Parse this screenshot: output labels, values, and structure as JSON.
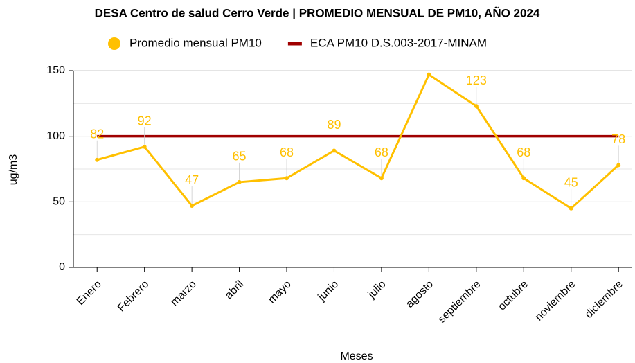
{
  "chart_data": {
    "type": "line",
    "title": "DESA Centro de salud Cerro Verde | PROMEDIO MENSUAL DE PM10, AÑO 2024",
    "x_label": "Meses",
    "y_label": "ug/m3",
    "categories": [
      "Enero",
      "Febrero",
      "marzo",
      "abril",
      "mayo",
      "junio",
      "julio",
      "agosto",
      "septiembre",
      "octubre",
      "noviembre",
      "diciembre"
    ],
    "series": [
      {
        "name": "Promedio mensual PM10",
        "color": "#ffc000",
        "marker": "circle",
        "values": [
          82,
          92,
          47,
          65,
          68,
          89,
          68,
          147,
          123,
          68,
          45,
          78
        ],
        "value_labels": [
          "82",
          "92",
          "47",
          "65",
          "68",
          "89",
          "68",
          null,
          "123",
          "68",
          "45",
          "78"
        ]
      },
      {
        "name": "ECA PM10 D.S.003-2017-MINAM",
        "color": "#a00000",
        "marker": "none",
        "values": [
          100,
          100,
          100,
          100,
          100,
          100,
          100,
          100,
          100,
          100,
          100,
          100
        ]
      }
    ],
    "ylim": [
      0,
      150
    ],
    "yticks": [
      0,
      50,
      100,
      150
    ],
    "minor_yticks": [
      25,
      75,
      125
    ],
    "grid": true,
    "legend": "top"
  }
}
